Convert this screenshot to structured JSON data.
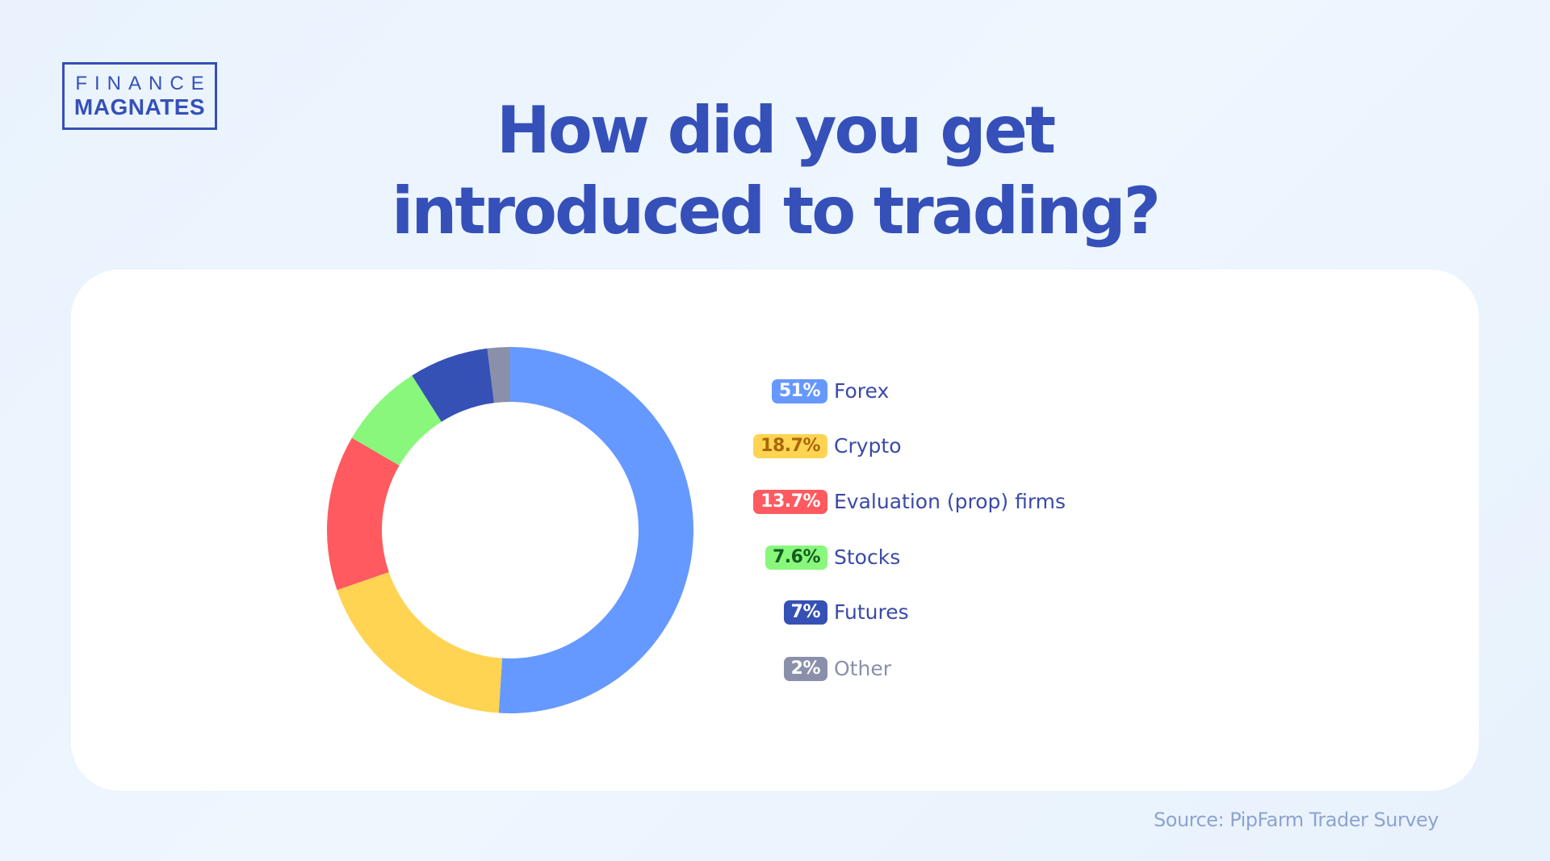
{
  "logo": {
    "line1": "FINANCE",
    "line2": "MAGNATES"
  },
  "title": {
    "line1": "How did you get",
    "line2": "introduced to trading?"
  },
  "source": "Source: PipFarm Trader Survey",
  "chart_data": {
    "type": "pie",
    "variant": "donut",
    "title": "How did you get introduced to trading?",
    "legend_position": "right",
    "categories": [
      "Forex",
      "Crypto",
      "Evaluation (prop) firms",
      "Stocks",
      "Futures",
      "Other"
    ],
    "values": [
      51,
      18.7,
      13.7,
      7.6,
      7,
      2
    ],
    "value_labels": [
      "51%",
      "18.7%",
      "13.7%",
      "7.6%",
      "7%",
      "2%"
    ],
    "colors": [
      "#6699ff",
      "#ffd452",
      "#ff5a5f",
      "#88f77c",
      "#3651b5",
      "#8a90aa"
    ],
    "label_text_colors": [
      "#ffffff",
      "#a8680a",
      "#ffffff",
      "#145c20",
      "#ffffff",
      "#ffffff"
    ],
    "legend_label_colors": [
      "#3a4aa8",
      "#3a4aa8",
      "#3a4aa8",
      "#3a4aa8",
      "#3a4aa8",
      "#8a90aa"
    ]
  }
}
